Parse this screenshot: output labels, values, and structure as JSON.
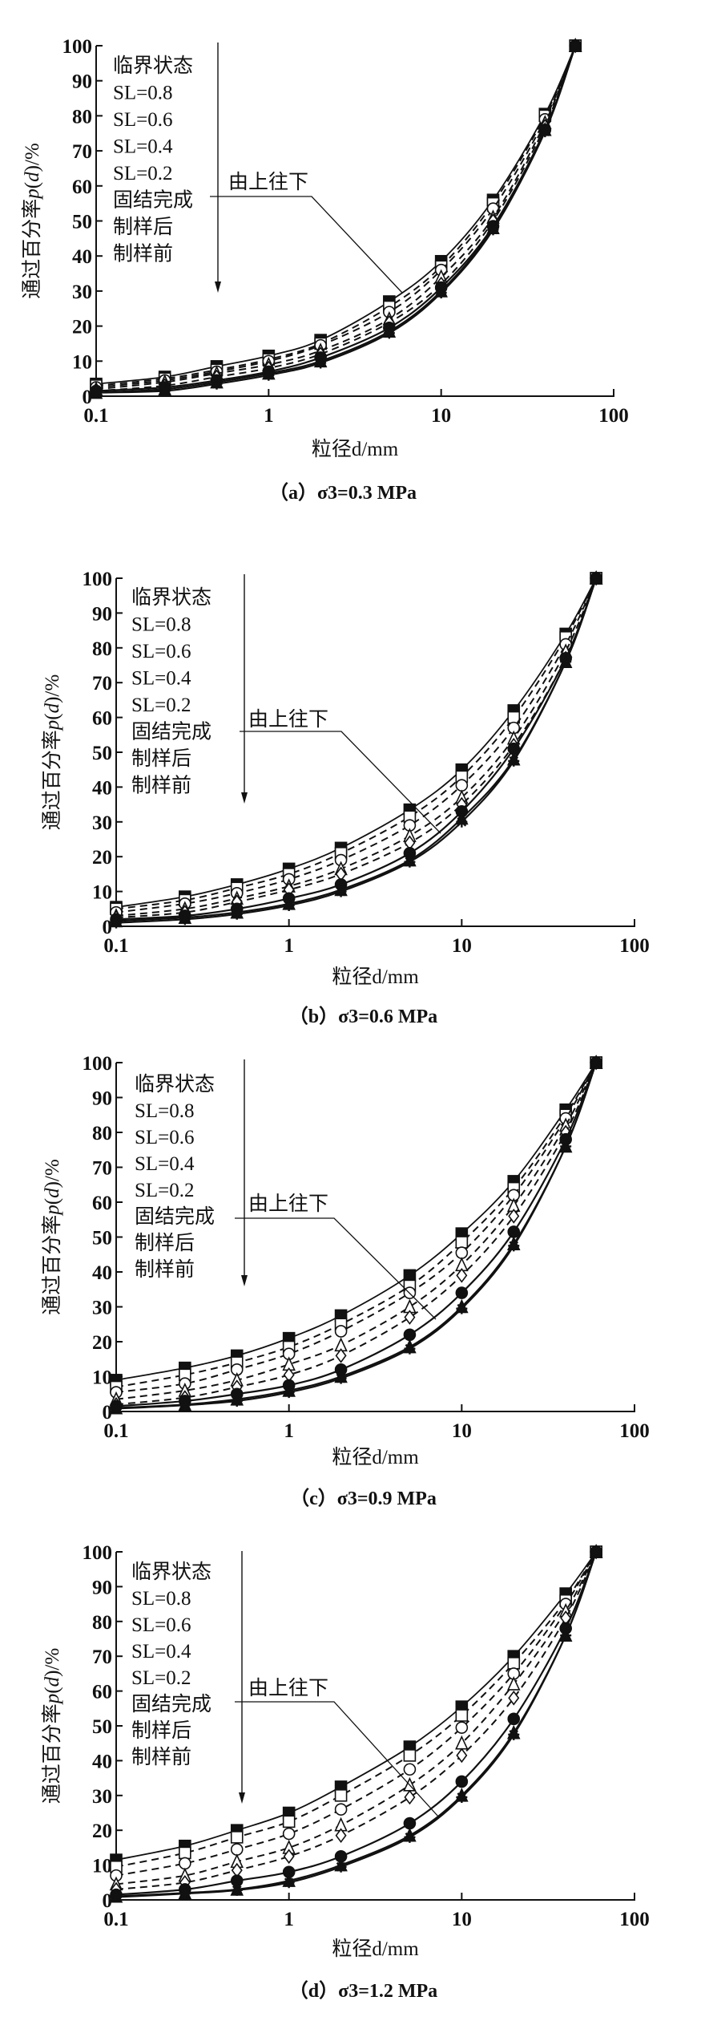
{
  "figure": {
    "legend_labels": [
      "临界状态",
      "SL=0.8",
      "SL=0.6",
      "SL=0.4",
      "SL=0.2",
      "固结完成",
      "制样后",
      "制样前"
    ],
    "annotation": "由上往下"
  },
  "chart_data": [
    {
      "type": "line",
      "title": "（a）σ3=0.3 MPa",
      "xlabel": "粒径d/mm",
      "ylabel": "通过百分率p(d)/%",
      "xscale": "log",
      "xlim": [
        0.1,
        100
      ],
      "ylim": [
        0,
        100
      ],
      "xticks": [
        "0.1",
        "1",
        "10",
        "100"
      ],
      "yticks": [
        "0",
        "10",
        "20",
        "30",
        "40",
        "50",
        "60",
        "70",
        "80",
        "90",
        "100"
      ],
      "x": [
        0.1,
        0.25,
        0.5,
        1,
        2,
        5,
        10,
        20,
        40,
        60
      ],
      "series": [
        {
          "name": "临界状态",
          "values": [
            3.5,
            5.5,
            8.5,
            11.5,
            16,
            27,
            38.5,
            56,
            80.5,
            100
          ]
        },
        {
          "name": "SL=0.8",
          "values": [
            3,
            5,
            7.5,
            10.5,
            15,
            25.5,
            37,
            55,
            80,
            100
          ]
        },
        {
          "name": "SL=0.6",
          "values": [
            2.5,
            4.5,
            7,
            10,
            14.5,
            24,
            36,
            53.5,
            79,
            100
          ]
        },
        {
          "name": "SL=0.4",
          "values": [
            2,
            4,
            6.5,
            9,
            13,
            22,
            34,
            51,
            78,
            100
          ]
        },
        {
          "name": "SL=0.2",
          "values": [
            1.5,
            3,
            5.5,
            8,
            12,
            21,
            32,
            50,
            77,
            100
          ]
        },
        {
          "name": "固结完成",
          "values": [
            1.5,
            2.5,
            4.5,
            7,
            11,
            19.5,
            31,
            48.5,
            76,
            100
          ]
        },
        {
          "name": "制样后",
          "values": [
            1,
            2,
            4,
            6.5,
            10,
            18.5,
            30,
            48,
            76,
            100
          ]
        },
        {
          "name": "制样前",
          "values": [
            1,
            1.5,
            3.5,
            6,
            9.5,
            18,
            29.5,
            47.5,
            75.5,
            100
          ]
        }
      ]
    },
    {
      "type": "line",
      "title": "（b）σ3=0.6 MPa",
      "xlabel": "粒径d/mm",
      "ylabel": "通过百分率p(d)/%",
      "xscale": "log",
      "xlim": [
        0.1,
        100
      ],
      "ylim": [
        0,
        100
      ],
      "xticks": [
        "0.1",
        "1",
        "10",
        "100"
      ],
      "yticks": [
        "0",
        "10",
        "20",
        "30",
        "40",
        "50",
        "60",
        "70",
        "80",
        "90",
        "100"
      ],
      "x": [
        0.1,
        0.25,
        0.5,
        1,
        2,
        5,
        10,
        20,
        40,
        60
      ],
      "series": [
        {
          "name": "临界状态",
          "values": [
            5.5,
            8.5,
            12,
            16.5,
            22.5,
            33.5,
            45,
            62,
            84,
            100
          ]
        },
        {
          "name": "SL=0.8",
          "values": [
            5,
            7.5,
            11,
            15,
            21,
            31.5,
            43,
            60,
            83,
            100
          ]
        },
        {
          "name": "SL=0.6",
          "values": [
            4,
            6.5,
            9.5,
            13.5,
            19,
            29,
            40.5,
            57,
            81,
            100
          ]
        },
        {
          "name": "SL=0.4",
          "values": [
            3,
            5,
            8,
            11.5,
            16.5,
            26,
            37,
            54,
            79,
            100
          ]
        },
        {
          "name": "SL=0.2",
          "values": [
            2.5,
            4,
            7,
            10.5,
            15,
            24,
            35,
            52,
            77,
            100
          ]
        },
        {
          "name": "固结完成",
          "values": [
            2,
            3,
            5,
            8,
            12,
            21,
            33,
            51,
            77,
            100
          ]
        },
        {
          "name": "制样后",
          "values": [
            1.5,
            2.5,
            4,
            6.5,
            10.5,
            19,
            31,
            48,
            76,
            100
          ]
        },
        {
          "name": "制样前",
          "values": [
            1,
            2,
            3.5,
            6,
            10,
            18.5,
            30,
            47.5,
            76,
            100
          ]
        }
      ]
    },
    {
      "type": "line",
      "title": "（c）σ3=0.9 MPa",
      "xlabel": "粒径d/mm",
      "ylabel": "通过百分率p(d)/%",
      "xscale": "log",
      "xlim": [
        0.1,
        100
      ],
      "ylim": [
        0,
        100
      ],
      "xticks": [
        "0.1",
        "1",
        "10",
        "100"
      ],
      "yticks": [
        "0",
        "10",
        "20",
        "30",
        "40",
        "50",
        "60",
        "70",
        "80",
        "90",
        "100"
      ],
      "x": [
        0.1,
        0.25,
        0.5,
        1,
        2,
        5,
        10,
        20,
        40,
        60
      ],
      "series": [
        {
          "name": "临界状态",
          "values": [
            9,
            12.5,
            16,
            21,
            27.5,
            39,
            51,
            66,
            86.5,
            100
          ]
        },
        {
          "name": "SL=0.8",
          "values": [
            7,
            10.5,
            14,
            18.5,
            25,
            36,
            48.5,
            64,
            85,
            100
          ]
        },
        {
          "name": "SL=0.6",
          "values": [
            5.5,
            8,
            12,
            16.5,
            23,
            34,
            45.5,
            62,
            84,
            100
          ]
        },
        {
          "name": "SL=0.4",
          "values": [
            3.5,
            6,
            9,
            13.5,
            19,
            30,
            42,
            59,
            82,
            100
          ]
        },
        {
          "name": "SL=0.2",
          "values": [
            2,
            4,
            7,
            10.5,
            16,
            27,
            39,
            56,
            80,
            100
          ]
        },
        {
          "name": "固结完成",
          "values": [
            1.5,
            3,
            5,
            7.5,
            12,
            22,
            34,
            51.5,
            78,
            100
          ]
        },
        {
          "name": "制样后",
          "values": [
            1,
            2,
            3.5,
            6,
            10,
            18.5,
            30,
            48,
            76,
            100
          ]
        },
        {
          "name": "制样前",
          "values": [
            0.8,
            1.8,
            3,
            5.5,
            9.5,
            18,
            29.5,
            47.5,
            76,
            100
          ]
        }
      ]
    },
    {
      "type": "line",
      "title": "（d）σ3=1.2 MPa",
      "xlabel": "粒径d/mm",
      "ylabel": "通过百分率p(d)/%",
      "xscale": "log",
      "xlim": [
        0.1,
        100
      ],
      "ylim": [
        0,
        100
      ],
      "xticks": [
        "0.1",
        "1",
        "10",
        "100"
      ],
      "yticks": [
        "0",
        "10",
        "20",
        "30",
        "40",
        "50",
        "60",
        "70",
        "80",
        "90",
        "100"
      ],
      "x": [
        0.1,
        0.25,
        0.5,
        1,
        2,
        5,
        10,
        20,
        40,
        60
      ],
      "series": [
        {
          "name": "临界状态",
          "values": [
            11.5,
            15.5,
            20,
            25,
            32.5,
            44,
            55.5,
            70,
            88,
            100
          ]
        },
        {
          "name": "SL=0.8",
          "values": [
            9.5,
            13.5,
            18,
            22.5,
            30,
            41.5,
            53,
            68,
            86,
            100
          ]
        },
        {
          "name": "SL=0.6",
          "values": [
            7,
            10.5,
            14.5,
            19,
            26,
            37.5,
            49.5,
            65,
            85,
            100
          ]
        },
        {
          "name": "SL=0.4",
          "values": [
            4.5,
            7,
            11,
            15,
            21.5,
            33,
            45,
            62,
            83,
            100
          ]
        },
        {
          "name": "SL=0.2",
          "values": [
            3,
            5,
            8.5,
            12.5,
            18.5,
            29.5,
            41.5,
            58,
            81,
            100
          ]
        },
        {
          "name": "固结完成",
          "values": [
            1.5,
            3,
            5.5,
            8,
            12.5,
            22,
            34,
            52,
            78,
            100
          ]
        },
        {
          "name": "制样后",
          "values": [
            1,
            2,
            3,
            5.5,
            10,
            18.5,
            30,
            48,
            76,
            100
          ]
        },
        {
          "name": "制样前",
          "values": [
            0.8,
            1.8,
            2.8,
            5,
            9.5,
            18,
            29.5,
            47.5,
            76,
            100
          ]
        }
      ]
    }
  ]
}
